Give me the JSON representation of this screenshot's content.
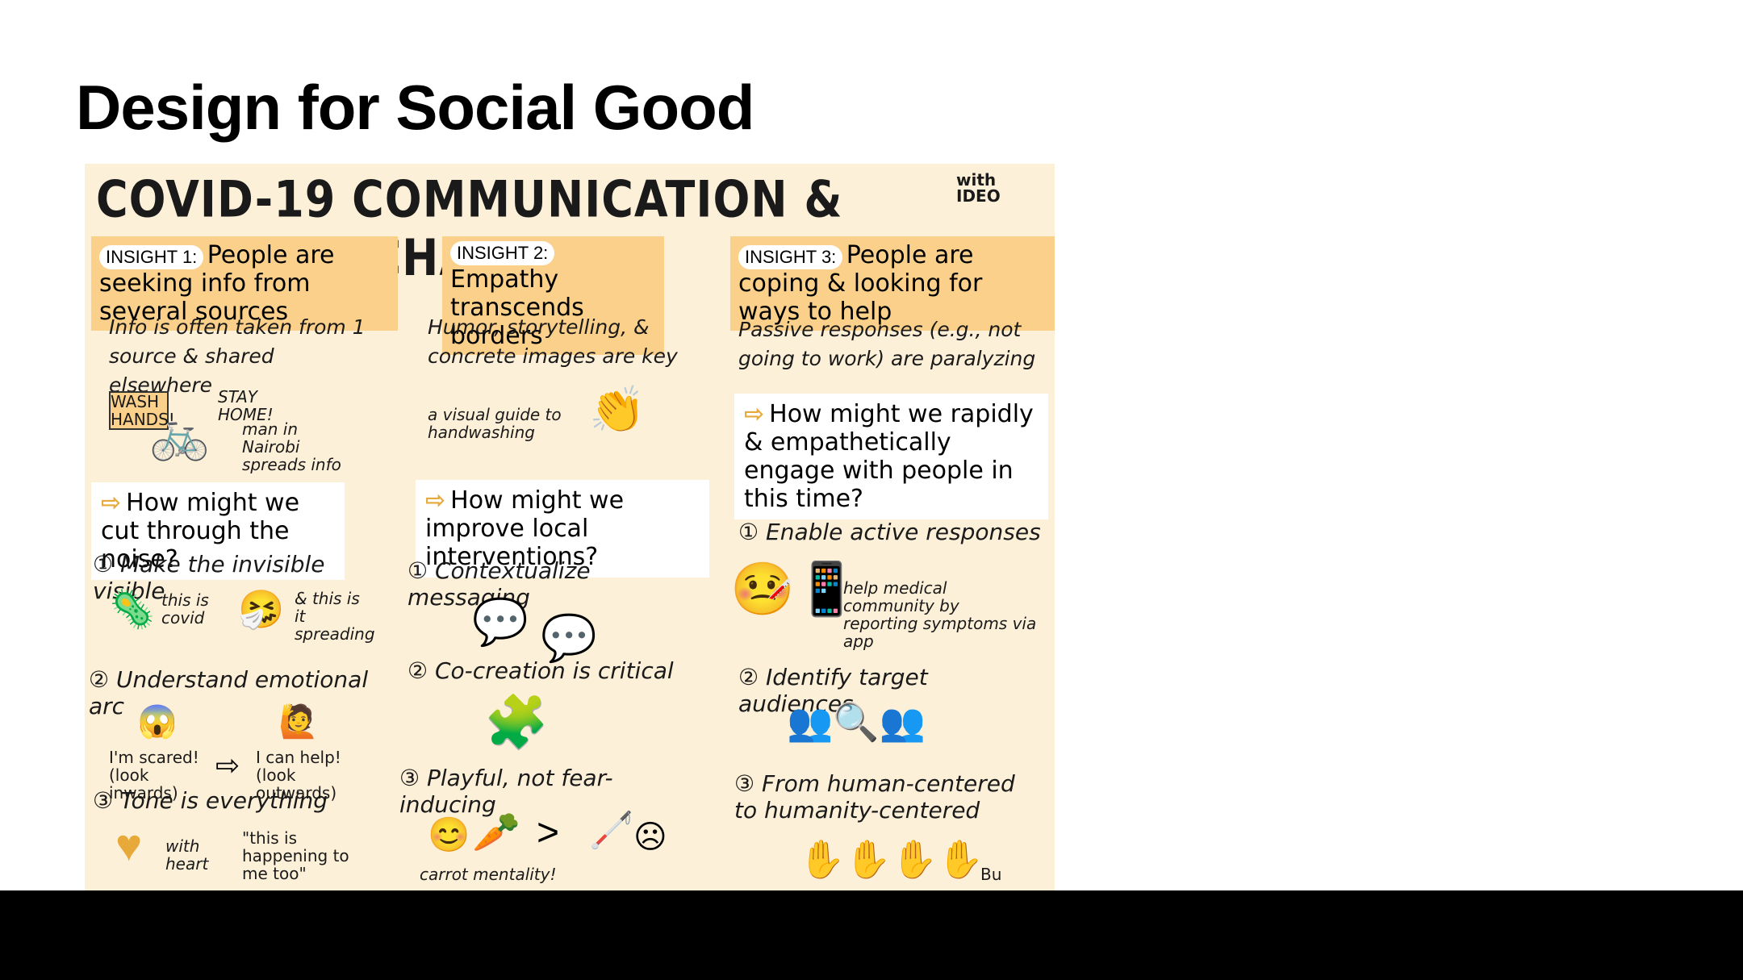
{
  "slide": {
    "title": "Design for Social Good"
  },
  "sketch": {
    "title": "COVID-19 COMMUNICATION & BEHAVIOR CHANGE",
    "with_ideo": "with IDEO",
    "col1": {
      "insight_label": "INSIGHT 1:",
      "insight_text": "People are seeking info from several sources",
      "body": "Info is often taken from 1 source & shared elsewhere",
      "wash_hands": "WASH HANDS!",
      "stay_home": "STAY HOME!",
      "caption": "man in Nairobi spreads info",
      "hmw": "How might we cut through the noise?",
      "item1": "① Make the invisible visible",
      "covid": "this is covid",
      "spreading": "& this is it spreading",
      "item2": "② Understand emotional arc",
      "scared": "I'm scared! (look inwards)",
      "help": "I can help! (look outwards)",
      "item3": "③ Tone is everything",
      "with_heart": "with heart",
      "quote": "\"this is happening to me too\""
    },
    "col2": {
      "insight_label": "INSIGHT 2:",
      "insight_text": "Empathy transcends borders",
      "body": "Humor, storytelling, & concrete images are key",
      "caption": "a visual guide to handwashing",
      "hmw": "How might we improve local interventions?",
      "item1": "① Contextualize messaging",
      "item2": "② Co-creation is critical",
      "item3": "③ Playful, not fear-inducing",
      "carrot": "carrot mentality!"
    },
    "col3": {
      "insight_label": "INSIGHT 3:",
      "insight_text": "People are coping & looking for ways to help",
      "body": "Passive responses (e.g., not going to work) are paralyzing",
      "hmw": "How might we rapidly & empathetically engage with people in this time?",
      "item1": "① Enable active responses",
      "caption": "help medical community by reporting symptoms via app",
      "item2": "② Identify target audiences",
      "item3": "③ From human-centered to humanity-centered",
      "signature": "Bu"
    }
  }
}
